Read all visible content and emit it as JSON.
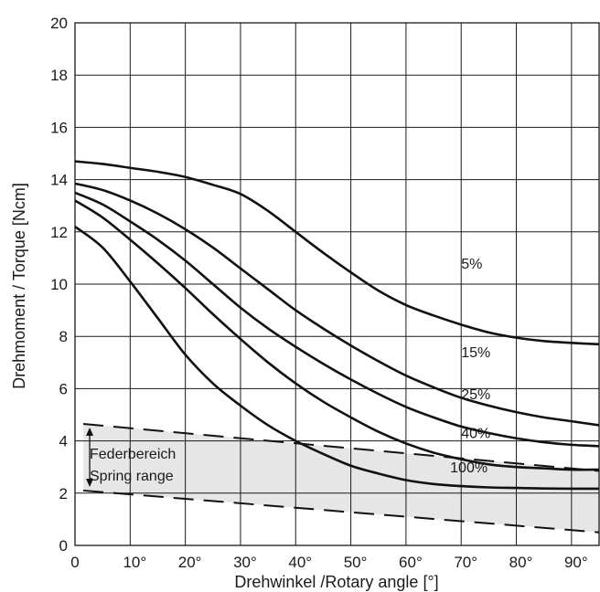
{
  "chart_data": {
    "type": "line",
    "title": "",
    "xlabel": "Drehwinkel /Rotary angle [°]",
    "ylabel": "Drehmoment / Torque [Ncm]",
    "xlim": [
      0,
      95
    ],
    "ylim": [
      0,
      20
    ],
    "x_ticks": [
      {
        "value": 0,
        "label": "0"
      },
      {
        "value": 10,
        "label": "10°"
      },
      {
        "value": 20,
        "label": "20°"
      },
      {
        "value": 30,
        "label": "30°"
      },
      {
        "value": 40,
        "label": "40°"
      },
      {
        "value": 50,
        "label": "50°"
      },
      {
        "value": 60,
        "label": "60°"
      },
      {
        "value": 70,
        "label": "70°"
      },
      {
        "value": 80,
        "label": "80°"
      },
      {
        "value": 90,
        "label": "90°"
      }
    ],
    "y_ticks": [
      {
        "value": 0,
        "label": "0"
      },
      {
        "value": 2,
        "label": "2"
      },
      {
        "value": 4,
        "label": "4"
      },
      {
        "value": 6,
        "label": "6"
      },
      {
        "value": 8,
        "label": "8"
      },
      {
        "value": 10,
        "label": "10"
      },
      {
        "value": 12,
        "label": "12"
      },
      {
        "value": 14,
        "label": "14"
      },
      {
        "value": 16,
        "label": "16"
      },
      {
        "value": 18,
        "label": "18"
      },
      {
        "value": 20,
        "label": "20"
      }
    ],
    "grid": true,
    "series": [
      {
        "name": "5%",
        "label_at": [
          70,
          10.6
        ],
        "points": [
          [
            0,
            14.7
          ],
          [
            5,
            14.6
          ],
          [
            10,
            14.45
          ],
          [
            15,
            14.3
          ],
          [
            20,
            14.1
          ],
          [
            25,
            13.8
          ],
          [
            30,
            13.45
          ],
          [
            35,
            12.8
          ],
          [
            40,
            12.0
          ],
          [
            45,
            11.2
          ],
          [
            50,
            10.45
          ],
          [
            55,
            9.75
          ],
          [
            60,
            9.2
          ],
          [
            65,
            8.8
          ],
          [
            70,
            8.45
          ],
          [
            75,
            8.15
          ],
          [
            80,
            7.95
          ],
          [
            85,
            7.82
          ],
          [
            90,
            7.75
          ],
          [
            95,
            7.7
          ]
        ]
      },
      {
        "name": "15%",
        "label_at": [
          70,
          7.2
        ],
        "points": [
          [
            0,
            13.85
          ],
          [
            5,
            13.6
          ],
          [
            10,
            13.2
          ],
          [
            15,
            12.7
          ],
          [
            20,
            12.1
          ],
          [
            25,
            11.4
          ],
          [
            30,
            10.6
          ],
          [
            35,
            9.8
          ],
          [
            40,
            9.0
          ],
          [
            45,
            8.3
          ],
          [
            50,
            7.65
          ],
          [
            55,
            7.05
          ],
          [
            60,
            6.5
          ],
          [
            65,
            6.05
          ],
          [
            70,
            5.65
          ],
          [
            75,
            5.35
          ],
          [
            80,
            5.1
          ],
          [
            85,
            4.9
          ],
          [
            90,
            4.75
          ],
          [
            95,
            4.6
          ]
        ]
      },
      {
        "name": "25%",
        "label_at": [
          70,
          5.6
        ],
        "points": [
          [
            0,
            13.5
          ],
          [
            5,
            13.05
          ],
          [
            10,
            12.4
          ],
          [
            15,
            11.7
          ],
          [
            20,
            10.9
          ],
          [
            25,
            10.0
          ],
          [
            30,
            9.1
          ],
          [
            35,
            8.3
          ],
          [
            40,
            7.6
          ],
          [
            45,
            6.95
          ],
          [
            50,
            6.35
          ],
          [
            55,
            5.8
          ],
          [
            60,
            5.3
          ],
          [
            65,
            4.9
          ],
          [
            70,
            4.55
          ],
          [
            75,
            4.3
          ],
          [
            80,
            4.1
          ],
          [
            85,
            3.95
          ],
          [
            90,
            3.85
          ],
          [
            95,
            3.8
          ]
        ]
      },
      {
        "name": "40%",
        "label_at": [
          70,
          4.1
        ],
        "points": [
          [
            0,
            13.2
          ],
          [
            5,
            12.55
          ],
          [
            10,
            11.7
          ],
          [
            15,
            10.8
          ],
          [
            20,
            9.85
          ],
          [
            25,
            8.85
          ],
          [
            30,
            7.9
          ],
          [
            35,
            7.0
          ],
          [
            40,
            6.2
          ],
          [
            45,
            5.5
          ],
          [
            50,
            4.9
          ],
          [
            55,
            4.35
          ],
          [
            60,
            3.9
          ],
          [
            65,
            3.55
          ],
          [
            70,
            3.3
          ],
          [
            75,
            3.1
          ],
          [
            80,
            3.0
          ],
          [
            85,
            2.95
          ],
          [
            90,
            2.9
          ],
          [
            95,
            2.9
          ]
        ]
      },
      {
        "name": "100%",
        "label_at": [
          68,
          2.8
        ],
        "points": [
          [
            0,
            12.2
          ],
          [
            5,
            11.4
          ],
          [
            10,
            10.1
          ],
          [
            15,
            8.7
          ],
          [
            20,
            7.3
          ],
          [
            25,
            6.2
          ],
          [
            30,
            5.35
          ],
          [
            35,
            4.6
          ],
          [
            40,
            4.0
          ],
          [
            45,
            3.5
          ],
          [
            50,
            3.05
          ],
          [
            55,
            2.75
          ],
          [
            60,
            2.5
          ],
          [
            65,
            2.35
          ],
          [
            70,
            2.27
          ],
          [
            75,
            2.22
          ],
          [
            80,
            2.2
          ],
          [
            85,
            2.18
          ],
          [
            90,
            2.17
          ],
          [
            95,
            2.17
          ]
        ]
      }
    ],
    "spring_range": {
      "label_line1": "Federbereich",
      "label_line2": "Spring range",
      "upper": [
        [
          1.5,
          4.65
        ],
        [
          95,
          2.85
        ]
      ],
      "lower": [
        [
          1.5,
          2.1
        ],
        [
          95,
          0.5
        ]
      ]
    }
  }
}
